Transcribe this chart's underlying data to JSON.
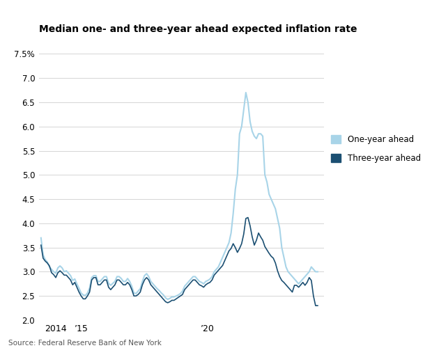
{
  "title": "Median one- and three-year ahead expected inflation rate",
  "source": "Source: Federal Reserve Bank of New York",
  "color_one_year": "#a8d4e8",
  "color_three_year": "#1b4f72",
  "ylim": [
    2.0,
    7.75
  ],
  "yticks": [
    2.0,
    2.5,
    3.0,
    3.5,
    4.0,
    4.5,
    5.0,
    5.5,
    6.0,
    6.5,
    7.0,
    7.5
  ],
  "ytick_labels": [
    "2.0",
    "2.5",
    "3.0",
    "3.5",
    "4.0",
    "4.5",
    "5.0",
    "5.5",
    "6.0",
    "6.5",
    "7.0",
    "7.5%"
  ],
  "legend_one_year": "One-year ahead",
  "legend_three_year": "Three-year ahead",
  "one_year": [
    3.7,
    3.35,
    3.25,
    3.2,
    3.1,
    3.05,
    3.0,
    2.97,
    3.08,
    3.12,
    3.08,
    3.0,
    3.02,
    2.97,
    2.92,
    2.82,
    2.85,
    2.75,
    2.66,
    2.56,
    2.52,
    2.51,
    2.56,
    2.66,
    2.88,
    2.92,
    2.92,
    2.8,
    2.8,
    2.85,
    2.9,
    2.9,
    2.76,
    2.72,
    2.76,
    2.8,
    2.9,
    2.9,
    2.86,
    2.8,
    2.8,
    2.86,
    2.8,
    2.7,
    2.56,
    2.55,
    2.6,
    2.65,
    2.8,
    2.92,
    2.96,
    2.9,
    2.8,
    2.75,
    2.7,
    2.65,
    2.61,
    2.56,
    2.52,
    2.46,
    2.43,
    2.45,
    2.48,
    2.48,
    2.5,
    2.52,
    2.55,
    2.6,
    2.7,
    2.75,
    2.8,
    2.85,
    2.9,
    2.9,
    2.85,
    2.8,
    2.78,
    2.75,
    2.8,
    2.82,
    2.85,
    2.9,
    3.0,
    3.05,
    3.1,
    3.2,
    3.3,
    3.4,
    3.5,
    3.6,
    3.8,
    4.2,
    4.7,
    5.0,
    5.85,
    6.0,
    6.35,
    6.7,
    6.5,
    6.1,
    5.9,
    5.8,
    5.75,
    5.85,
    5.85,
    5.8,
    5.0,
    4.85,
    4.6,
    4.5,
    4.4,
    4.3,
    4.1,
    3.9,
    3.5,
    3.3,
    3.1,
    3.0,
    2.95,
    2.9,
    2.85,
    2.8,
    2.75,
    2.8,
    2.85,
    2.9,
    2.95,
    3.0,
    3.1,
    3.05,
    3.0,
    3.0
  ],
  "three_year": [
    3.55,
    3.28,
    3.22,
    3.18,
    3.12,
    2.98,
    2.94,
    2.88,
    2.98,
    3.02,
    2.98,
    2.93,
    2.93,
    2.88,
    2.83,
    2.73,
    2.78,
    2.68,
    2.58,
    2.5,
    2.44,
    2.44,
    2.5,
    2.58,
    2.83,
    2.88,
    2.88,
    2.73,
    2.73,
    2.78,
    2.83,
    2.83,
    2.68,
    2.63,
    2.68,
    2.73,
    2.83,
    2.83,
    2.78,
    2.73,
    2.73,
    2.78,
    2.73,
    2.63,
    2.5,
    2.5,
    2.53,
    2.58,
    2.73,
    2.83,
    2.88,
    2.83,
    2.73,
    2.68,
    2.63,
    2.58,
    2.53,
    2.48,
    2.43,
    2.38,
    2.36,
    2.38,
    2.41,
    2.41,
    2.44,
    2.47,
    2.5,
    2.53,
    2.63,
    2.68,
    2.73,
    2.78,
    2.83,
    2.83,
    2.78,
    2.73,
    2.71,
    2.68,
    2.73,
    2.76,
    2.78,
    2.83,
    2.93,
    2.98,
    3.03,
    3.08,
    3.13,
    3.23,
    3.33,
    3.43,
    3.48,
    3.58,
    3.5,
    3.4,
    3.48,
    3.58,
    3.78,
    4.1,
    4.12,
    3.95,
    3.72,
    3.55,
    3.65,
    3.8,
    3.72,
    3.65,
    3.52,
    3.45,
    3.38,
    3.32,
    3.28,
    3.18,
    3.02,
    2.9,
    2.82,
    2.78,
    2.73,
    2.68,
    2.63,
    2.58,
    2.72,
    2.72,
    2.68,
    2.73,
    2.78,
    2.72,
    2.78,
    2.88,
    2.82,
    2.5,
    2.3,
    2.3
  ]
}
